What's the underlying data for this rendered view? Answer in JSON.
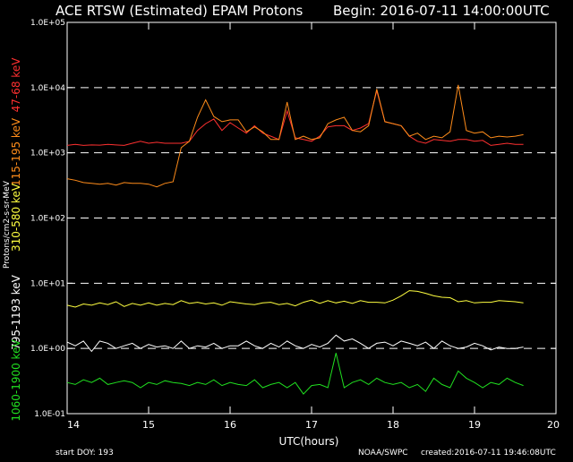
{
  "header": {
    "title": "ACE RTSW (Estimated) EPAM Protons",
    "begin": "Begin: 2016-07-11  14:00:00UTC"
  },
  "footer": {
    "start_doy": "start DOY:  193",
    "source": "NOAA/SWPC",
    "created": "created:2016-07-11  19:46:08UTC"
  },
  "chart_data": {
    "type": "line",
    "xlabel": "UTC(hours)",
    "ylabel": "Protons/cm2-s-sr-MeV",
    "xlim": [
      14,
      20
    ],
    "ylim": [
      0.1,
      100000
    ],
    "yscale": "log",
    "grid": "dashed at 1e0, 1e1, 1e2, 1e3, 1e4",
    "x_ticks": [
      "14",
      "15",
      "16",
      "17",
      "18",
      "19",
      "20"
    ],
    "y_ticks": [
      "1.0E-01",
      "1.0E+00",
      "1.0E+01",
      "1.0E+02",
      "1.0E+03",
      "1.0E+04",
      "1.0E+05"
    ],
    "x": [
      14.0,
      14.1,
      14.2,
      14.3,
      14.4,
      14.5,
      14.6,
      14.7,
      14.8,
      14.9,
      15.0,
      15.1,
      15.2,
      15.3,
      15.4,
      15.5,
      15.6,
      15.7,
      15.8,
      15.9,
      16.0,
      16.1,
      16.2,
      16.3,
      16.4,
      16.5,
      16.6,
      16.7,
      16.8,
      16.9,
      17.0,
      17.1,
      17.2,
      17.3,
      17.4,
      17.5,
      17.6,
      17.7,
      17.8,
      17.9,
      18.0,
      18.1,
      18.2,
      18.3,
      18.4,
      18.5,
      18.6,
      18.7,
      18.8,
      18.9,
      19.0,
      19.1,
      19.2,
      19.3,
      19.4,
      19.5,
      19.6
    ],
    "series": [
      {
        "name": "47-68 keV",
        "color": "#ff3030",
        "values": [
          1300,
          1350,
          1300,
          1320,
          1310,
          1350,
          1320,
          1300,
          1400,
          1500,
          1400,
          1450,
          1400,
          1400,
          1400,
          1500,
          2200,
          2800,
          3300,
          2200,
          2900,
          2400,
          2000,
          2600,
          2000,
          1800,
          1600,
          4400,
          1700,
          1600,
          1500,
          1800,
          2500,
          2600,
          2600,
          2200,
          2400,
          2800,
          9000,
          3000,
          2800,
          2600,
          1800,
          1500,
          1400,
          1600,
          1550,
          1500,
          1600,
          1600,
          1500,
          1550,
          1300,
          1350,
          1400,
          1350,
          1350
        ]
      },
      {
        "name": "115-195 keV",
        "color": "#ff8c1a",
        "values": [
          400,
          380,
          350,
          340,
          330,
          340,
          320,
          350,
          340,
          340,
          330,
          300,
          340,
          360,
          1200,
          1500,
          3500,
          6500,
          3600,
          3000,
          3200,
          3200,
          2100,
          2500,
          2100,
          1600,
          1600,
          6000,
          1600,
          1800,
          1600,
          1700,
          2800,
          3200,
          3500,
          2200,
          2100,
          2600,
          9500,
          3000,
          2800,
          2600,
          1800,
          2000,
          1600,
          1800,
          1700,
          2100,
          11000,
          2200,
          2000,
          2100,
          1700,
          1800,
          1750,
          1800,
          1900
        ]
      },
      {
        "name": "310-580 keV",
        "color": "#ffff40",
        "values": [
          4.6,
          4.3,
          4.8,
          4.6,
          5.0,
          4.7,
          5.2,
          4.4,
          4.9,
          4.6,
          5.0,
          4.6,
          4.9,
          4.7,
          5.4,
          4.9,
          5.1,
          4.8,
          5.0,
          4.6,
          5.2,
          5.0,
          4.8,
          4.7,
          5.0,
          5.1,
          4.7,
          4.9,
          4.5,
          5.1,
          5.5,
          4.9,
          5.4,
          5.0,
          5.3,
          4.9,
          5.4,
          5.1,
          5.1,
          5.0,
          5.5,
          6.4,
          7.7,
          7.5,
          7.0,
          6.4,
          6.1,
          6.0,
          5.2,
          5.4,
          5.0,
          5.1,
          5.1,
          5.4,
          5.3,
          5.2,
          5.0
        ]
      },
      {
        "name": "795-1193 keV",
        "color": "#ffffff",
        "values": [
          1.25,
          1.1,
          1.3,
          0.9,
          1.3,
          1.2,
          1.0,
          1.1,
          1.2,
          1.0,
          1.15,
          1.05,
          1.1,
          1.0,
          1.3,
          1.0,
          1.1,
          1.05,
          1.2,
          1.0,
          1.1,
          1.1,
          1.3,
          1.1,
          1.0,
          1.2,
          1.05,
          1.3,
          1.1,
          1.0,
          1.15,
          1.05,
          1.2,
          1.6,
          1.3,
          1.4,
          1.2,
          1.0,
          1.2,
          1.25,
          1.1,
          1.3,
          1.2,
          1.1,
          1.25,
          1.0,
          1.3,
          1.1,
          1.0,
          1.05,
          1.2,
          1.1,
          0.95,
          1.05,
          1.0,
          1.0,
          1.05
        ]
      },
      {
        "name": "1060-1900 keV",
        "color": "#20e020",
        "values": [
          0.3,
          0.28,
          0.33,
          0.3,
          0.35,
          0.28,
          0.3,
          0.32,
          0.3,
          0.25,
          0.3,
          0.28,
          0.32,
          0.3,
          0.29,
          0.27,
          0.3,
          0.28,
          0.33,
          0.27,
          0.3,
          0.28,
          0.27,
          0.33,
          0.25,
          0.28,
          0.3,
          0.25,
          0.3,
          0.2,
          0.27,
          0.28,
          0.25,
          0.85,
          0.25,
          0.3,
          0.33,
          0.28,
          0.35,
          0.3,
          0.28,
          0.3,
          0.25,
          0.28,
          0.22,
          0.35,
          0.28,
          0.25,
          0.45,
          0.35,
          0.3,
          0.25,
          0.3,
          0.28,
          0.35,
          0.3,
          0.27
        ]
      }
    ]
  }
}
